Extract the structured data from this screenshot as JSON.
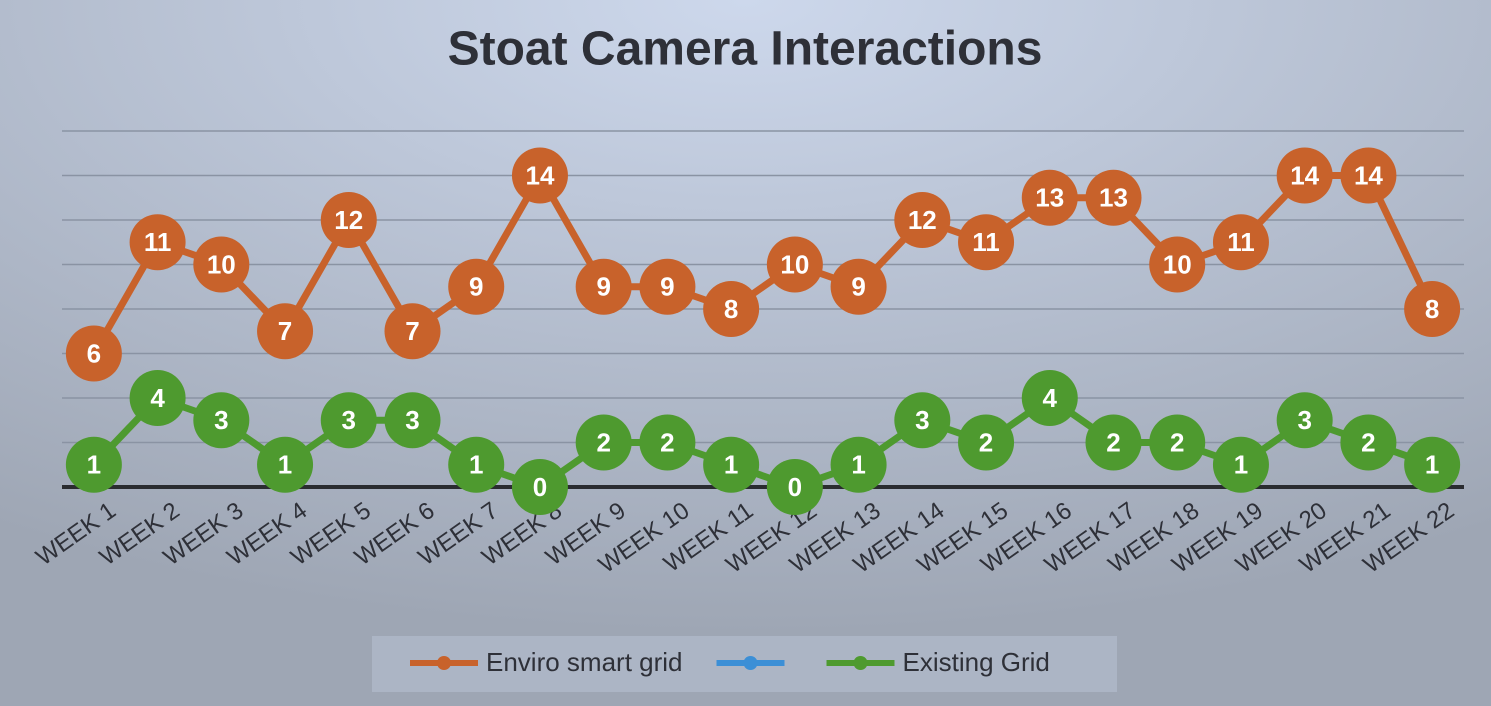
{
  "chart_data": {
    "type": "line",
    "title": "Stoat Camera Interactions",
    "categories": [
      "WEEK 1",
      "WEEK 2",
      "WEEK 3",
      "WEEK 4",
      "WEEK 5",
      "WEEK 6",
      "WEEK 7",
      "WEEK 8",
      "WEEK 9",
      "WEEK 10",
      "WEEK 11",
      "WEEK 12",
      "WEEK 13",
      "WEEK 14",
      "WEEK 15",
      "WEEK 16",
      "WEEK 17",
      "WEEK 18",
      "WEEK 19",
      "WEEK 20",
      "WEEK 21",
      "WEEK 22"
    ],
    "series": [
      {
        "name": "Enviro smart grid",
        "color": "#c8622b",
        "values": [
          6,
          11,
          10,
          7,
          12,
          7,
          9,
          14,
          9,
          9,
          8,
          10,
          9,
          12,
          11,
          13,
          13,
          10,
          11,
          14,
          14,
          8
        ]
      },
      {
        "color": "#3c8fd6",
        "values": [
          null,
          null,
          null,
          null,
          null,
          null,
          null,
          null,
          null,
          null,
          null,
          null,
          null,
          null,
          null,
          null,
          null,
          null,
          null,
          null,
          null,
          null
        ]
      },
      {
        "name": "Existing Grid",
        "color": "#4e9a2f",
        "values": [
          1,
          4,
          3,
          1,
          3,
          3,
          1,
          0,
          2,
          2,
          1,
          0,
          1,
          3,
          2,
          4,
          2,
          2,
          1,
          3,
          2,
          1
        ]
      }
    ],
    "ylim": [
      0,
      16
    ],
    "yticks": [
      0,
      2,
      4,
      6,
      8,
      10,
      12,
      14,
      16
    ],
    "grid": true,
    "legend": "bottom"
  }
}
